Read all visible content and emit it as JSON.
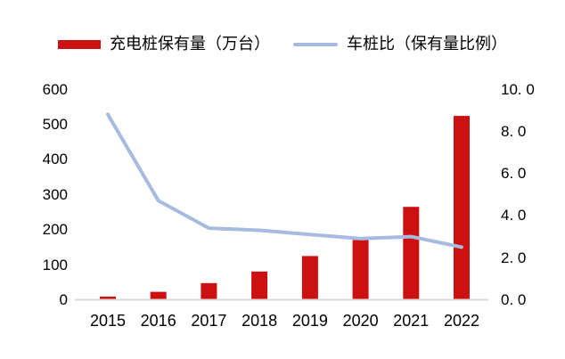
{
  "legend": [
    {
      "label": "充电桩保有量（万台）",
      "swatch": "bar",
      "color": "#CC1111"
    },
    {
      "label": "车桩比（保有量比例）",
      "swatch": "line",
      "color": "#A7BADF"
    }
  ],
  "chart_data": {
    "type": "bar",
    "subtype": "bar+line combo, dual axis",
    "categories": [
      "2015",
      "2016",
      "2017",
      "2018",
      "2019",
      "2020",
      "2021",
      "2022"
    ],
    "series": [
      {
        "name": "充电桩保有量（万台）",
        "type": "bar",
        "axis": "left",
        "color": "#CC1111",
        "values": [
          6.6,
          20,
          45,
          78,
          122,
          168,
          262,
          521
        ]
      },
      {
        "name": "车桩比（保有量比例）",
        "type": "line",
        "axis": "right",
        "color": "#A7BADF",
        "values": [
          8.8,
          4.7,
          3.4,
          3.3,
          3.1,
          2.9,
          3.0,
          2.5
        ]
      }
    ],
    "title": "",
    "xlabel": "",
    "ylabel": "",
    "left_axis": {
      "min": 0,
      "max": 600,
      "tick_labels": [
        "0",
        "100",
        "200",
        "300",
        "400",
        "500",
        "600"
      ]
    },
    "right_axis": {
      "min": 0,
      "max": 10,
      "tick_labels": [
        "0. 0",
        "2. 0",
        "4. 0",
        "6. 0",
        "8. 0",
        "10. 0"
      ]
    },
    "grid": false,
    "legend_position": "top",
    "axis_line_color": "#D9D9D9",
    "text_color": "#000000"
  }
}
